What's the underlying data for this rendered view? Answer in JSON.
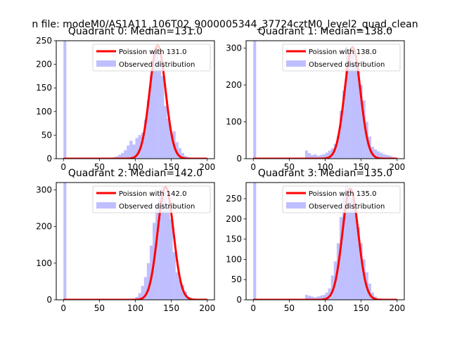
{
  "figure": {
    "suptitle": "n file: modeM0/AS1A11_106T02_9000005344_37724cztM0_level2_quad_clean"
  },
  "chart_data": [
    {
      "type": "bar",
      "title": "Quadrant 0: Median=131.0",
      "xlabel": "",
      "ylabel": "",
      "xlim": [
        -10,
        210
      ],
      "ylim": [
        0,
        250
      ],
      "xticks": [
        0,
        50,
        100,
        150,
        200
      ],
      "yticks": [
        0,
        50,
        100,
        150,
        200,
        250
      ],
      "legend_placement": "upper right",
      "series": [
        {
          "name": "Poission with 131.0",
          "kind": "line",
          "color": "#ff0000",
          "mean": 131.0,
          "peak": 240
        },
        {
          "name": "Observed distribution",
          "kind": "histogram",
          "color": "#8080ff",
          "alpha": 0.5,
          "bin_width": 4,
          "bin_starts": [
            0,
            64,
            68,
            72,
            76,
            80,
            84,
            88,
            92,
            96,
            100,
            104,
            108,
            112,
            116,
            120,
            124,
            128,
            132,
            136,
            140,
            144,
            148,
            152,
            156,
            160,
            164,
            168,
            172
          ],
          "counts": [
            250,
            2,
            3,
            5,
            8,
            12,
            18,
            28,
            38,
            30,
            44,
            50,
            55,
            82,
            124,
            176,
            230,
            228,
            210,
            175,
            112,
            85,
            55,
            58,
            35,
            22,
            12,
            6,
            3
          ]
        }
      ]
    },
    {
      "type": "bar",
      "title": "Quadrant 1: Median=138.0",
      "xlabel": "",
      "ylabel": "",
      "xlim": [
        -10,
        210
      ],
      "ylim": [
        0,
        320
      ],
      "xticks": [
        0,
        50,
        100,
        150,
        200
      ],
      "yticks": [
        0,
        100,
        200,
        300
      ],
      "legend_placement": "upper right",
      "series": [
        {
          "name": "Poission with 138.0",
          "kind": "line",
          "color": "#ff0000",
          "mean": 138.0,
          "peak": 303
        },
        {
          "name": "Observed distribution",
          "kind": "histogram",
          "color": "#8080ff",
          "alpha": 0.5,
          "bin_width": 4,
          "bin_starts": [
            0,
            72,
            76,
            80,
            84,
            88,
            92,
            96,
            100,
            104,
            108,
            112,
            116,
            120,
            124,
            128,
            132,
            136,
            140,
            144,
            148,
            152,
            156,
            160,
            164,
            168,
            172,
            176,
            180,
            184,
            188,
            192,
            196
          ],
          "counts": [
            320,
            22,
            15,
            10,
            12,
            8,
            10,
            12,
            16,
            22,
            28,
            40,
            62,
            130,
            185,
            305,
            280,
            295,
            262,
            238,
            200,
            158,
            100,
            60,
            32,
            25,
            20,
            16,
            12,
            10,
            8,
            5,
            3
          ]
        }
      ]
    },
    {
      "type": "bar",
      "title": "Quadrant 2: Median=142.0",
      "xlabel": "",
      "ylabel": "",
      "xlim": [
        -10,
        210
      ],
      "ylim": [
        0,
        320
      ],
      "xticks": [
        0,
        50,
        100,
        150,
        200
      ],
      "yticks": [
        0,
        100,
        200,
        300
      ],
      "legend_placement": "upper right",
      "series": [
        {
          "name": "Poission with 142.0",
          "kind": "line",
          "color": "#ff0000",
          "mean": 142.0,
          "peak": 308
        },
        {
          "name": "Observed distribution",
          "kind": "histogram",
          "color": "#8080ff",
          "alpha": 0.5,
          "bin_width": 4,
          "bin_starts": [
            0,
            96,
            100,
            104,
            108,
            112,
            116,
            120,
            124,
            128,
            132,
            136,
            140,
            144,
            148,
            152,
            156,
            160,
            164,
            168,
            172,
            176
          ],
          "counts": [
            320,
            3,
            8,
            18,
            38,
            62,
            100,
            148,
            210,
            260,
            300,
            308,
            295,
            260,
            220,
            130,
            75,
            55,
            40,
            22,
            8,
            3
          ]
        }
      ]
    },
    {
      "type": "bar",
      "title": "Quadrant 3: Median=135.0",
      "xlabel": "",
      "ylabel": "",
      "xlim": [
        -10,
        210
      ],
      "ylim": [
        0,
        290
      ],
      "xticks": [
        0,
        50,
        100,
        150,
        200
      ],
      "yticks": [
        0,
        50,
        100,
        150,
        200,
        250
      ],
      "legend_placement": "upper right",
      "series": [
        {
          "name": "Poission with 135.0",
          "kind": "line",
          "color": "#ff0000",
          "mean": 135.0,
          "peak": 275
        },
        {
          "name": "Observed distribution",
          "kind": "histogram",
          "color": "#8080ff",
          "alpha": 0.5,
          "bin_width": 4,
          "bin_starts": [
            0,
            72,
            76,
            80,
            84,
            88,
            92,
            96,
            100,
            104,
            108,
            112,
            116,
            120,
            124,
            128,
            132,
            136,
            140,
            144,
            148,
            152,
            156,
            160,
            164,
            168,
            172
          ],
          "counts": [
            290,
            12,
            10,
            8,
            6,
            8,
            10,
            12,
            18,
            28,
            60,
            95,
            140,
            205,
            260,
            282,
            270,
            250,
            225,
            180,
            140,
            100,
            68,
            40,
            18,
            8,
            3
          ]
        }
      ]
    }
  ]
}
